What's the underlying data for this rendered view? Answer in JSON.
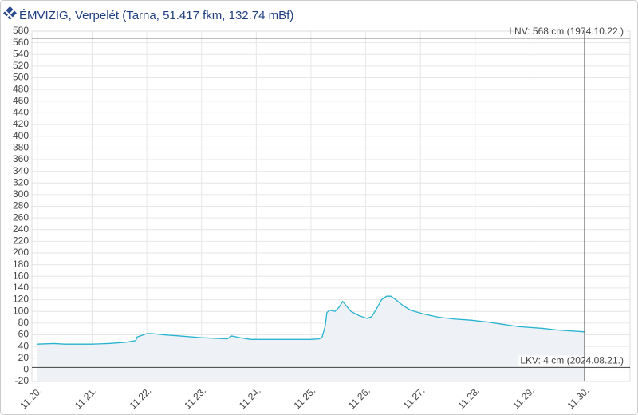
{
  "chart_data": {
    "type": "line",
    "title": "ÉMVIZIG, Verpelét (Tarna, 51.417 fkm, 132.74 mBf)",
    "x": [
      20.0,
      20.3,
      20.5,
      21.0,
      21.3,
      21.6,
      21.8,
      21.82,
      22.0,
      22.1,
      22.3,
      22.6,
      23.0,
      23.47,
      23.55,
      23.7,
      23.9,
      24.0,
      25.0,
      25.15,
      25.2,
      25.26,
      25.29,
      25.34,
      25.44,
      25.51,
      25.58,
      25.64,
      25.73,
      25.87,
      26.02,
      26.11,
      26.2,
      26.29,
      26.38,
      26.46,
      26.55,
      26.68,
      26.82,
      27.04,
      27.33,
      27.62,
      27.92,
      28.21,
      28.5,
      28.79,
      29.23,
      29.52,
      30.0
    ],
    "series": [
      {
        "color": "#27b3cf",
        "values": [
          44,
          45,
          44,
          44,
          45,
          47,
          50,
          56,
          62,
          62,
          60,
          58,
          55,
          53,
          58,
          55,
          52,
          52,
          52,
          53,
          55,
          75,
          98,
          102,
          100,
          107,
          117,
          110,
          100,
          93,
          88,
          91,
          105,
          120,
          126,
          126,
          120,
          110,
          102,
          96,
          90,
          87,
          85,
          82,
          78,
          74,
          71,
          68,
          65
        ]
      }
    ],
    "xlim": [
      19.9,
      30.83
    ],
    "xticks": [
      {
        "value": 20,
        "label": "11.20."
      },
      {
        "value": 21,
        "label": "11.21."
      },
      {
        "value": 22,
        "label": "11.22."
      },
      {
        "value": 23,
        "label": "11.23."
      },
      {
        "value": 24,
        "label": "11.24."
      },
      {
        "value": 25,
        "label": "11.25."
      },
      {
        "value": 26,
        "label": "11.26."
      },
      {
        "value": 27,
        "label": "11.27."
      },
      {
        "value": 28,
        "label": "11.28."
      },
      {
        "value": 29,
        "label": "11.29."
      },
      {
        "value": 30,
        "label": "11.30."
      }
    ],
    "ylim": [
      -20,
      580
    ],
    "yticks": [
      -20,
      0,
      20,
      40,
      60,
      80,
      100,
      120,
      140,
      160,
      180,
      200,
      220,
      240,
      260,
      280,
      300,
      320,
      340,
      360,
      380,
      400,
      420,
      440,
      460,
      480,
      500,
      520,
      540,
      560,
      580
    ],
    "grid": true,
    "reference_lines": [
      {
        "value": 568,
        "label": "LNV: 568 cm (1974.10.22.)"
      },
      {
        "value": 4,
        "label": "LKV: 4 cm (2024.08.21.)"
      }
    ],
    "vline": 30.0
  }
}
